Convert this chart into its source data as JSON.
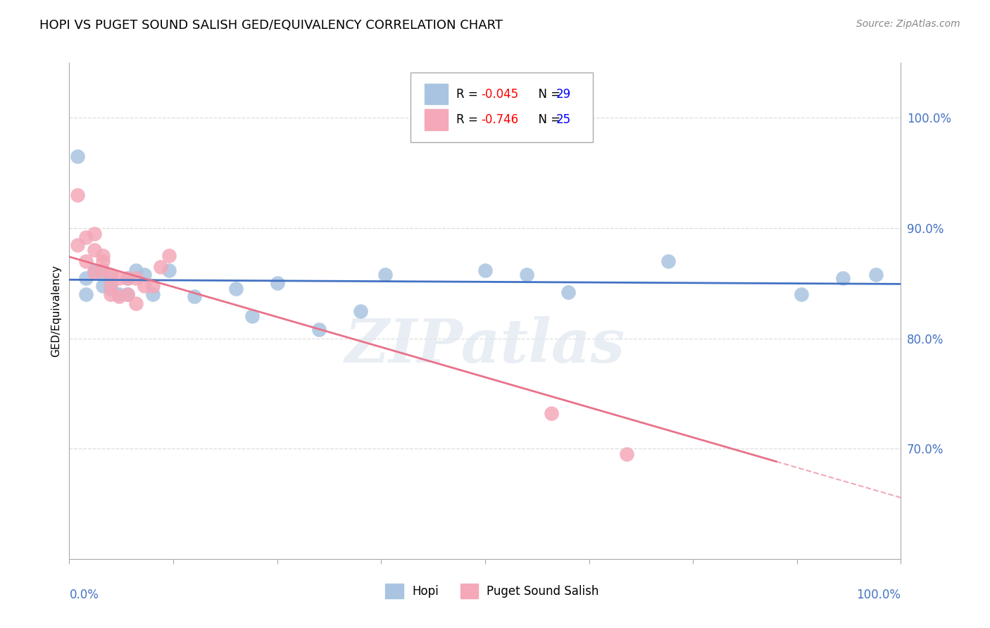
{
  "title": "HOPI VS PUGET SOUND SALISH GED/EQUIVALENCY CORRELATION CHART",
  "source": "Source: ZipAtlas.com",
  "ylabel": "GED/Equivalency",
  "hopi_R": -0.045,
  "hopi_N": 29,
  "salish_R": -0.746,
  "salish_N": 25,
  "hopi_dot_color": "#a8c4e0",
  "salish_dot_color": "#f4a8b8",
  "hopi_line_color": "#4472c4",
  "salish_line_color": "#e8728a",
  "text_R_color": "#ff0000",
  "text_N_color": "#0000ff",
  "axis_label_color": "#4472c4",
  "grid_color": "#dddddd",
  "watermark_text": "ZIPatlas",
  "watermark_color": "#e0e8f0",
  "legend_label_hopi": "Hopi",
  "legend_label_salish": "Puget Sound Salish",
  "xlim": [
    0.0,
    1.0
  ],
  "ylim": [
    0.6,
    1.05
  ],
  "yticks": [
    0.7,
    0.8,
    0.9,
    1.0
  ],
  "ytick_labels": [
    "70.0%",
    "80.0%",
    "90.0%",
    "100.0%"
  ],
  "hopi_x": [
    0.01,
    0.02,
    0.02,
    0.03,
    0.04,
    0.04,
    0.05,
    0.05,
    0.06,
    0.07,
    0.07,
    0.08,
    0.09,
    0.1,
    0.12,
    0.15,
    0.2,
    0.25,
    0.3,
    0.38,
    0.5,
    0.55,
    0.6,
    0.72,
    0.88,
    0.93,
    0.97,
    0.22,
    0.35
  ],
  "hopi_y": [
    0.965,
    0.855,
    0.84,
    0.862,
    0.858,
    0.848,
    0.855,
    0.845,
    0.84,
    0.855,
    0.84,
    0.862,
    0.858,
    0.84,
    0.862,
    0.838,
    0.845,
    0.85,
    0.808,
    0.858,
    0.862,
    0.858,
    0.842,
    0.87,
    0.84,
    0.855,
    0.858,
    0.82,
    0.825
  ],
  "salish_x": [
    0.01,
    0.01,
    0.02,
    0.02,
    0.03,
    0.03,
    0.03,
    0.04,
    0.04,
    0.04,
    0.05,
    0.05,
    0.05,
    0.06,
    0.06,
    0.07,
    0.07,
    0.08,
    0.08,
    0.09,
    0.1,
    0.11,
    0.12,
    0.58,
    0.67
  ],
  "salish_y": [
    0.93,
    0.885,
    0.892,
    0.87,
    0.88,
    0.895,
    0.86,
    0.87,
    0.875,
    0.862,
    0.858,
    0.84,
    0.848,
    0.855,
    0.838,
    0.855,
    0.84,
    0.832,
    0.855,
    0.848,
    0.848,
    0.865,
    0.875,
    0.732,
    0.695
  ]
}
